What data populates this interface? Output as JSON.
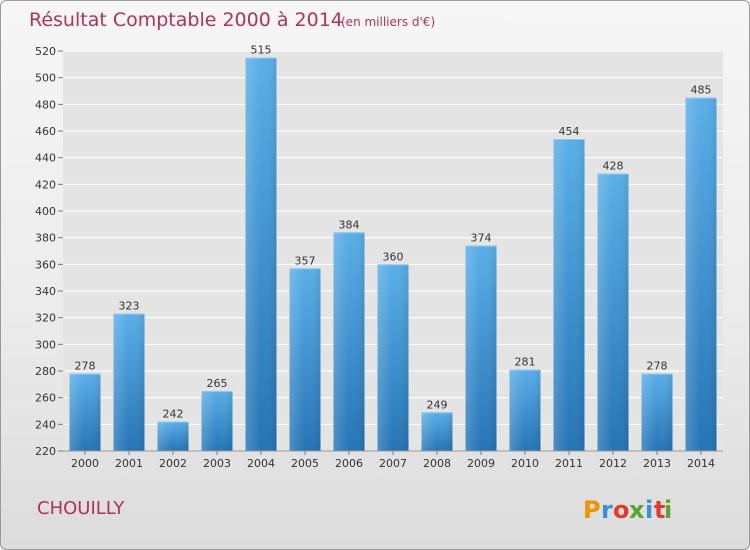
{
  "title": "Résultat Comptable 2000 à 2014",
  "subtitle": "(en milliers d'€)",
  "commune": "CHOUILLY",
  "logo": {
    "letters": [
      "P",
      "r",
      "o",
      "x",
      "i",
      "t",
      "i"
    ],
    "colors": [
      "#f29200",
      "#3a8fd6",
      "#e23b2e",
      "#58a431",
      "#3a8fd6",
      "#e23b2e",
      "#58a431"
    ]
  },
  "colors": {
    "bar_light": "#5aaee8",
    "bar_dark": "#2574b5",
    "title": "#b0325a",
    "grid": "#ffffff"
  },
  "chart_data": {
    "type": "bar",
    "title": "Résultat Comptable 2000 à 2014",
    "subtitle": "(en milliers d'€)",
    "categories": [
      "2000",
      "2001",
      "2002",
      "2003",
      "2004",
      "2005",
      "2006",
      "2007",
      "2008",
      "2009",
      "2010",
      "2011",
      "2012",
      "2013",
      "2014"
    ],
    "values": [
      278,
      323,
      242,
      265,
      515,
      357,
      384,
      360,
      249,
      374,
      281,
      454,
      428,
      278,
      485
    ],
    "ylim": [
      220,
      520
    ],
    "yticks": [
      220,
      240,
      260,
      280,
      300,
      320,
      340,
      360,
      380,
      400,
      420,
      440,
      460,
      480,
      500,
      520
    ],
    "grid": true,
    "data_labels": true
  }
}
